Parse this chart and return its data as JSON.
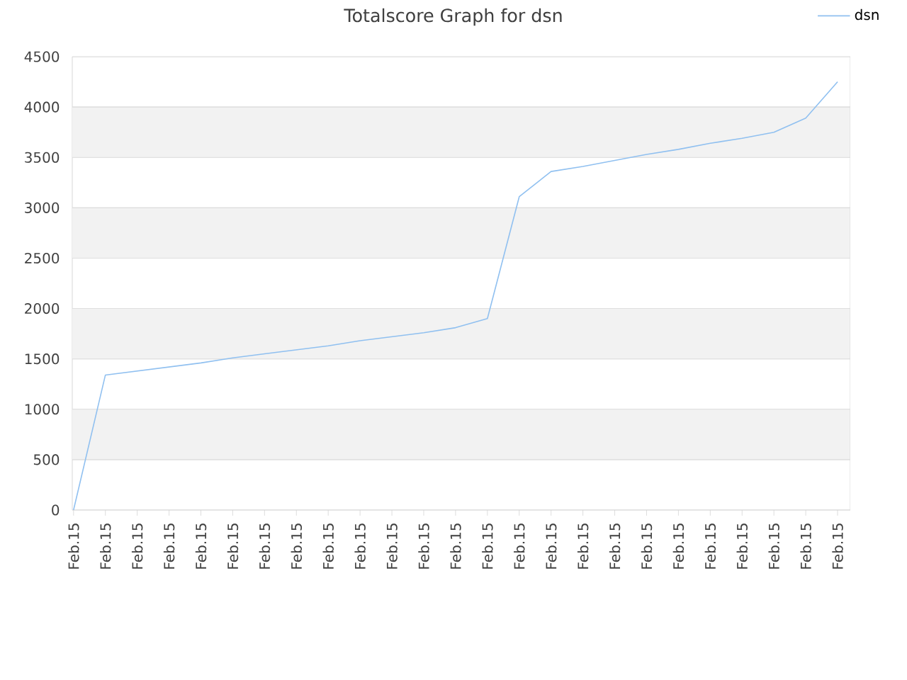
{
  "chart_data": {
    "type": "line",
    "title": "Totalscore Graph for dsn",
    "categories": [
      "Feb.15",
      "Feb.15",
      "Feb.15",
      "Feb.15",
      "Feb.15",
      "Feb.15",
      "Feb.15",
      "Feb.15",
      "Feb.15",
      "Feb.15",
      "Feb.15",
      "Feb.15",
      "Feb.15",
      "Feb.15",
      "Feb.15",
      "Feb.15",
      "Feb.15",
      "Feb.15",
      "Feb.15",
      "Feb.15",
      "Feb.15",
      "Feb.15",
      "Feb.15",
      "Feb.15",
      "Feb.15"
    ],
    "series": [
      {
        "name": "dsn",
        "color": "#90c0f0",
        "values": [
          0,
          1340,
          1380,
          1420,
          1460,
          1510,
          1550,
          1590,
          1630,
          1680,
          1720,
          1760,
          1810,
          1900,
          3110,
          3360,
          3410,
          3470,
          3530,
          3580,
          3640,
          3690,
          3750,
          3890,
          4250
        ]
      }
    ],
    "ylim": [
      0,
      4500
    ],
    "yticks": [
      0,
      500,
      1000,
      1500,
      2000,
      2500,
      3000,
      3500,
      4000,
      4500
    ],
    "grid": "y",
    "legend": "top right",
    "line_style": "solid"
  }
}
